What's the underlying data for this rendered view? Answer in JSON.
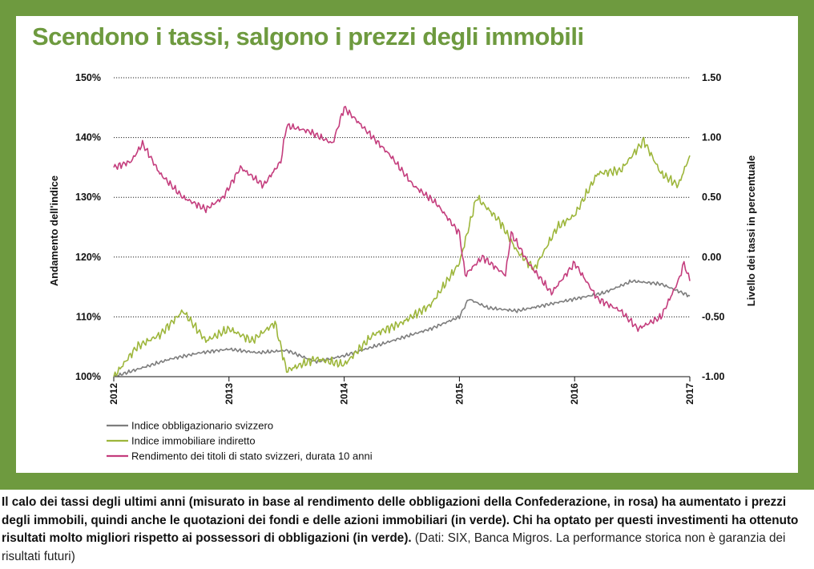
{
  "title": "Scendono i tassi, salgono i prezzi degli immobili",
  "caption": {
    "main": "Il calo dei tassi degli ultimi anni (misurato in base al rendimento delle obbligazioni della Confederazione, in rosa) ha aumentato i prezzi degli immobili, quindi anche le quotazioni dei fondi e delle azioni immobiliari (in verde). Chi ha optato per questi investimenti ha ottenuto risultati molto migliori rispetto ai possessori di obbligazioni (in verde).",
    "note": " (Dati: SIX, Banca Migros. La performance storica non è garanzia dei risultati futuri)"
  },
  "colors": {
    "frame": "#6e9a3f",
    "title": "#6e9a3f",
    "bond_index": "#7d7d7d",
    "real_estate_index": "#9db63b",
    "yield": "#c43d7d",
    "grid": "#222222"
  },
  "chart_data": {
    "type": "line",
    "x_ticks": [
      "2012",
      "2013",
      "2014",
      "2015",
      "2016",
      "2017"
    ],
    "xlim": [
      "2012",
      "2017"
    ],
    "ylabel_left": "Andamento dell'indice",
    "ylabel_right": "Livello dei tassi in percentuale",
    "ylim_left": [
      100,
      150
    ],
    "ylim_right": [
      -1.0,
      1.5
    ],
    "y_ticks_left": [
      "100%",
      "110%",
      "120%",
      "130%",
      "140%",
      "150%"
    ],
    "y_ticks_right": [
      "-1.00",
      "-0.50",
      "0.00",
      "0.50",
      "1.00",
      "1.50"
    ],
    "grid": "horizontal dotted",
    "legend_position": "bottom-left",
    "series": [
      {
        "name": "Indice obbligazionario svizzero",
        "axis": "left",
        "x": [
          2012.0,
          2012.25,
          2012.5,
          2012.75,
          2013.0,
          2013.25,
          2013.5,
          2013.75,
          2014.0,
          2014.25,
          2014.5,
          2014.75,
          2015.0,
          2015.08,
          2015.25,
          2015.5,
          2015.75,
          2016.0,
          2016.25,
          2016.5,
          2016.75,
          2017.0
        ],
        "values": [
          100.0,
          101.5,
          103.0,
          104.0,
          104.6,
          104.0,
          104.4,
          102.5,
          103.5,
          105.0,
          106.5,
          108.0,
          110.0,
          113.0,
          111.5,
          111.0,
          112.0,
          113.0,
          114.0,
          116.0,
          115.5,
          113.5
        ]
      },
      {
        "name": "Indice immobiliare indiretto",
        "axis": "left",
        "x": [
          2012.0,
          2012.2,
          2012.4,
          2012.6,
          2012.8,
          2013.0,
          2013.2,
          2013.4,
          2013.5,
          2013.75,
          2014.0,
          2014.25,
          2014.5,
          2014.75,
          2015.0,
          2015.15,
          2015.35,
          2015.5,
          2015.65,
          2015.85,
          2016.0,
          2016.2,
          2016.4,
          2016.6,
          2016.75,
          2016.9,
          2017.0
        ],
        "values": [
          100.0,
          105.0,
          107.0,
          111.0,
          106.0,
          108.0,
          106.0,
          109.0,
          101.0,
          103.0,
          102.0,
          107.0,
          109.0,
          112.0,
          119.0,
          130.0,
          126.0,
          121.0,
          118.0,
          125.0,
          127.0,
          134.0,
          134.5,
          139.5,
          134.0,
          132.0,
          137.0
        ]
      },
      {
        "name": "Rendimento dei titoli di stato svizzeri, durata 10 anni",
        "axis": "right",
        "x": [
          2012.0,
          2012.15,
          2012.25,
          2012.4,
          2012.6,
          2012.8,
          2012.95,
          2013.1,
          2013.3,
          2013.45,
          2013.5,
          2013.7,
          2013.9,
          2014.0,
          2014.2,
          2014.4,
          2014.6,
          2014.8,
          2015.0,
          2015.05,
          2015.2,
          2015.4,
          2015.45,
          2015.6,
          2015.8,
          2016.0,
          2016.2,
          2016.4,
          2016.55,
          2016.75,
          2016.9,
          2016.95,
          2017.0
        ],
        "values": [
          0.75,
          0.8,
          0.95,
          0.7,
          0.5,
          0.4,
          0.5,
          0.75,
          0.6,
          0.8,
          1.1,
          1.05,
          0.95,
          1.25,
          1.05,
          0.85,
          0.6,
          0.45,
          0.2,
          -0.15,
          0.0,
          -0.15,
          0.2,
          -0.05,
          -0.3,
          -0.05,
          -0.35,
          -0.45,
          -0.6,
          -0.5,
          -0.2,
          -0.05,
          -0.2
        ]
      }
    ]
  }
}
